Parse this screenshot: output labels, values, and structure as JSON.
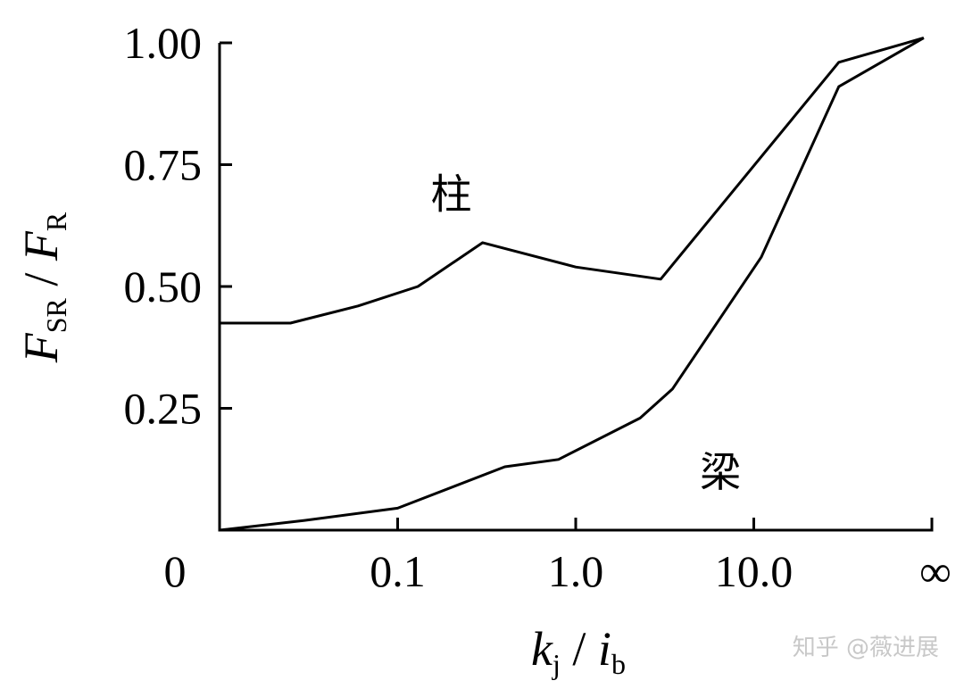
{
  "chart_data": {
    "type": "line",
    "x_scale": "log",
    "x_ticks": [
      "0",
      "0.1",
      "1.0",
      "10.0",
      "∞"
    ],
    "x_tick_values": [
      0.01,
      0.1,
      1,
      10,
      100
    ],
    "y_ticks": [
      "0.25",
      "0.50",
      "0.75",
      "1.00"
    ],
    "y_tick_values": [
      0.25,
      0.5,
      0.75,
      1.0
    ],
    "ylim": [
      0,
      1.0
    ],
    "ylabel": {
      "main": "F",
      "sub1": "SR",
      "sep": " / ",
      "main2": "F",
      "sub2": "R"
    },
    "xlabel": {
      "main": "k",
      "sub1": "j",
      "sep": " / ",
      "main2": "i",
      "sub2": "b"
    },
    "series": [
      {
        "name": "柱",
        "x": [
          0.01,
          0.025,
          0.06,
          0.13,
          0.3,
          1.0,
          3.0,
          30,
          90
        ],
        "y": [
          0.425,
          0.425,
          0.46,
          0.5,
          0.59,
          0.54,
          0.515,
          0.96,
          1.01
        ]
      },
      {
        "name": "梁",
        "x": [
          0.01,
          0.03,
          0.1,
          0.4,
          0.8,
          2.3,
          3.5,
          11,
          30,
          90
        ],
        "y": [
          0.0,
          0.02,
          0.045,
          0.13,
          0.145,
          0.23,
          0.29,
          0.56,
          0.91,
          1.01
        ]
      }
    ],
    "grid": false,
    "legend": "none"
  },
  "watermark": "知乎 @薇进展"
}
